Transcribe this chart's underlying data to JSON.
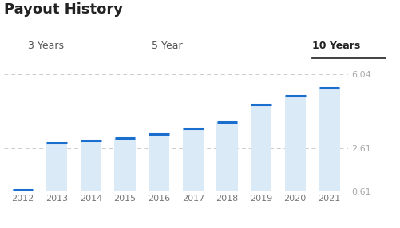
{
  "title": "Payout History",
  "categories": [
    "2012",
    "2013",
    "2014",
    "2015",
    "2016",
    "2017",
    "2018",
    "2019",
    "2020",
    "2021"
  ],
  "bar_values": [
    0.7,
    2.87,
    2.98,
    3.1,
    3.25,
    3.54,
    3.8,
    4.64,
    5.04,
    5.4
  ],
  "bar_bottom": 0.61,
  "bar_color": "#daeaf7",
  "blue_line_color": "#1a6fce",
  "ylim": [
    0.61,
    6.5
  ],
  "yticks": [
    0.61,
    2.61,
    6.04
  ],
  "ytick_labels": [
    "0.61",
    "2.61",
    "6.04"
  ],
  "grid_color": "#cccccc",
  "background_color": "#ffffff",
  "label_3y_text": "3 Years",
  "label_5y_text": "5 Year",
  "label_10y_text": "10 Years",
  "title_fontsize": 13,
  "label_fontsize": 9,
  "axis_fontsize": 8,
  "xtick_color": "#777777",
  "ytick_color": "#aaaaaa",
  "label_color": "#555555"
}
